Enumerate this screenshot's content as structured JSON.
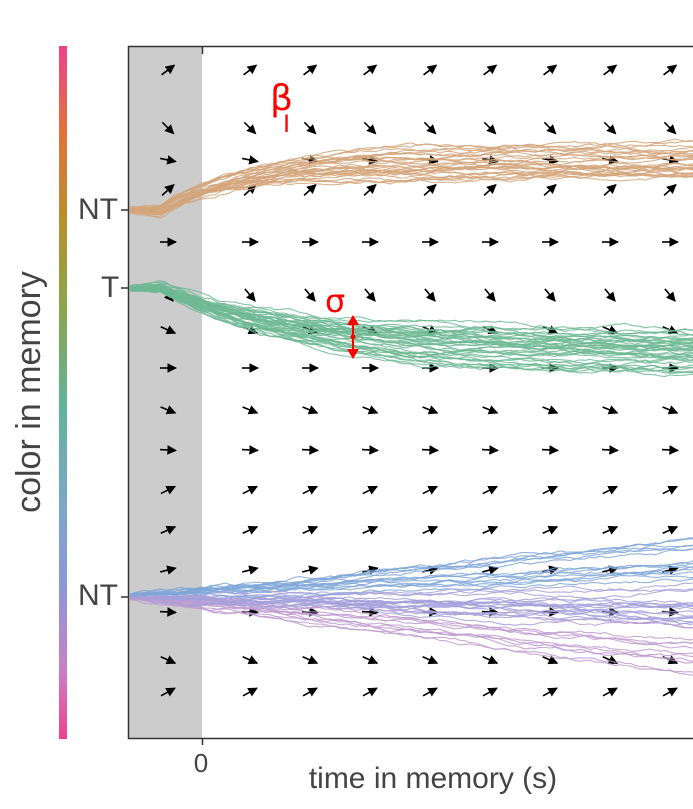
{
  "y_axis_label": "color in memory",
  "x_axis_label": "time in memory (s)",
  "x_tick_zero": "0",
  "y_ticks": {
    "nt_top": "NT",
    "target": "T",
    "nt_bottom": "NT"
  },
  "annotations": {
    "beta": "β",
    "beta_sub": "I",
    "sigma": "σ"
  },
  "colors": {
    "accent_red": "#ff0000",
    "pre_stimulus_band": "#cccccc",
    "nt_top_traces": "#d4a57a",
    "target_traces": "#6fb894",
    "nt_bottom_traces": [
      "#7fa6d8",
      "#a5a0db",
      "#c09ad0"
    ],
    "colorbar": [
      "#f0418c",
      "#c880c8",
      "#8c98d6",
      "#7aa8c8",
      "#5fb49a",
      "#8aa64c",
      "#b9902e",
      "#e2723c",
      "#f0418c"
    ],
    "arrows": "#000000"
  }
}
